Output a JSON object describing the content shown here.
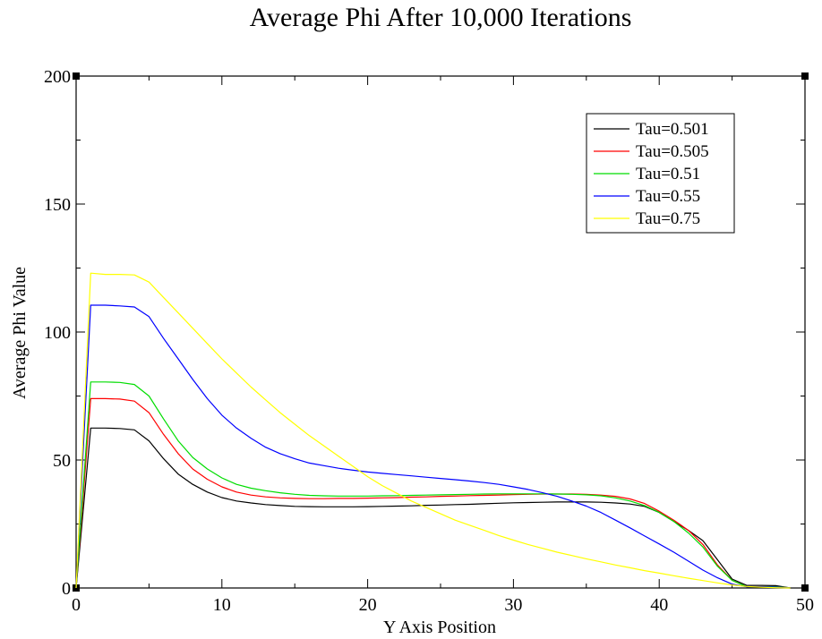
{
  "chart_data": {
    "type": "line",
    "title": "Average Phi After 10,000 Iterations",
    "xlabel": "Y Axis Position",
    "ylabel": "Average Phi Value",
    "xlim": [
      0,
      50
    ],
    "ylim": [
      0,
      200
    ],
    "x_ticks": [
      0,
      10,
      20,
      30,
      40,
      50
    ],
    "y_ticks": [
      0,
      50,
      100,
      150,
      200
    ],
    "x_tick_labels": [
      "0",
      "10",
      "20",
      "30",
      "40",
      "50"
    ],
    "y_tick_labels": [
      "0",
      "50",
      "100",
      "150",
      "200"
    ],
    "grid": false,
    "legend_position": "top-right",
    "x": [
      0,
      1,
      2,
      3,
      4,
      5,
      6,
      7,
      8,
      9,
      10,
      11,
      12,
      13,
      14,
      15,
      16,
      17,
      18,
      19,
      20,
      21,
      22,
      23,
      24,
      25,
      26,
      27,
      28,
      29,
      30,
      31,
      32,
      33,
      34,
      35,
      36,
      37,
      38,
      39,
      40,
      41,
      42,
      43,
      44,
      45,
      46,
      47,
      48,
      49
    ],
    "series": [
      {
        "name": "Tau=0.501",
        "color": "#000000",
        "values": [
          0,
          62.5,
          62.5,
          62.3,
          61.8,
          57.5,
          50.5,
          44.5,
          40.5,
          37.5,
          35.3,
          34,
          33.2,
          32.6,
          32.2,
          31.9,
          31.8,
          31.7,
          31.7,
          31.7,
          31.8,
          31.9,
          32,
          32.1,
          32.3,
          32.4,
          32.6,
          32.7,
          32.9,
          33.1,
          33.3,
          33.4,
          33.5,
          33.6,
          33.6,
          33.6,
          33.5,
          33.2,
          32.8,
          31.9,
          29.5,
          26,
          22.5,
          18.5,
          11,
          3.5,
          1,
          1,
          0.9,
          0
        ]
      },
      {
        "name": "Tau=0.505",
        "color": "#ff0000",
        "values": [
          0,
          74,
          74,
          73.8,
          73,
          68.5,
          60,
          52.5,
          46.5,
          42.5,
          39.5,
          37.5,
          36.3,
          35.6,
          35.2,
          35,
          34.9,
          34.9,
          35,
          35,
          35.1,
          35.2,
          35.3,
          35.5,
          35.6,
          35.8,
          35.9,
          36.1,
          36.2,
          36.3,
          36.5,
          36.6,
          36.7,
          36.7,
          36.7,
          36.6,
          36.3,
          35.8,
          34.8,
          33,
          30,
          26.5,
          22.5,
          17,
          9,
          3,
          0.5,
          0.5,
          0.5,
          0
        ]
      },
      {
        "name": "Tau=0.51",
        "color": "#00dd00",
        "values": [
          0,
          80.5,
          80.5,
          80.3,
          79.5,
          75,
          66,
          57.5,
          51,
          46.5,
          43,
          40.5,
          39,
          38,
          37.2,
          36.6,
          36.2,
          36,
          35.9,
          35.9,
          35.9,
          36,
          36.1,
          36.2,
          36.3,
          36.4,
          36.5,
          36.6,
          36.7,
          36.8,
          36.8,
          36.8,
          36.8,
          36.7,
          36.6,
          36.4,
          36,
          35.2,
          34,
          32.2,
          29.5,
          26,
          21.5,
          16,
          8.5,
          3,
          0.5,
          0.5,
          0.5,
          0
        ]
      },
      {
        "name": "Tau=0.55",
        "color": "#0000ff",
        "values": [
          0,
          110.5,
          110.5,
          110.2,
          109.8,
          106,
          97.5,
          89.5,
          81.5,
          74,
          67.5,
          62.5,
          58.5,
          55,
          52.5,
          50.5,
          48.8,
          47.8,
          46.8,
          46,
          45.3,
          44.8,
          44.3,
          43.8,
          43.3,
          42.8,
          42.3,
          41.8,
          41.2,
          40.5,
          39.5,
          38.5,
          37.2,
          35.8,
          34,
          32,
          29.5,
          26.5,
          23.5,
          20.3,
          17.2,
          14,
          10.5,
          7,
          4,
          1.5,
          0.5,
          0.5,
          0.3,
          0
        ]
      },
      {
        "name": "Tau=0.75",
        "color": "#ffff00",
        "values": [
          0,
          123,
          122.5,
          122.5,
          122.3,
          119.5,
          113.5,
          107.5,
          101.5,
          95.5,
          89.5,
          84,
          78.5,
          73.5,
          68.5,
          64,
          59.5,
          55.5,
          51.5,
          47.5,
          43.5,
          40,
          37,
          34,
          31.5,
          29,
          26.5,
          24.5,
          22.5,
          20.5,
          18.7,
          17,
          15.5,
          14,
          12.7,
          11.4,
          10.2,
          9,
          7.9,
          6.8,
          5.8,
          4.8,
          3.8,
          2.9,
          2,
          1.2,
          0.6,
          0.3,
          0.1,
          0
        ]
      }
    ]
  }
}
